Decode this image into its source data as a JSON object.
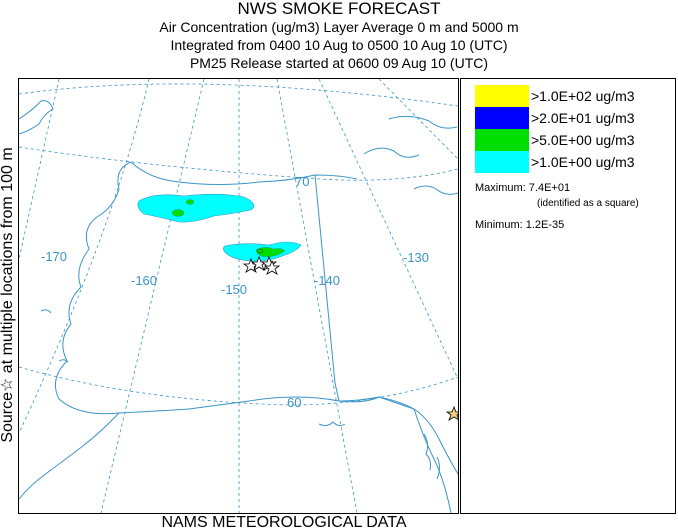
{
  "header": {
    "title": "NWS SMOKE FORECAST",
    "line2": "Air Concentration (ug/m3) Layer Average    0 m and  5000 m",
    "line3": "Integrated from 0400 10 Aug to 0500 10 Aug 10 (UTC)",
    "line4": "PM25 Release started at 0600 09 Aug 10 (UTC)"
  },
  "side_label": "Source☆ at multiple locations  from  100 m",
  "footer": "NAMS METEOROLOGICAL DATA",
  "map": {
    "graticule_labels": {
      "lat70": "70",
      "lat60": "60",
      "lon170": "-170",
      "lon160": "-160",
      "lon150": "-150",
      "lon140": "-140",
      "lon130": "-130"
    },
    "colors": {
      "coastline": "#3a95c8",
      "graticule": "#3a95c8",
      "source_star": "#000000"
    }
  },
  "legend": {
    "items": [
      {
        "label": ">1.0E+02 ug/m3",
        "color": "#ffff00"
      },
      {
        "label": ">2.0E+01 ug/m3",
        "color": "#0000ff"
      },
      {
        "label": ">5.0E+00 ug/m3",
        "color": "#00dd00"
      },
      {
        "label": ">1.0E+00 ug/m3",
        "color": "#00ffff"
      }
    ],
    "maximum_label": "Maximum: 7.4E+01",
    "maximum_note": "(identified as a square)",
    "minimum_label": "Minimum: 1.2E-35"
  }
}
